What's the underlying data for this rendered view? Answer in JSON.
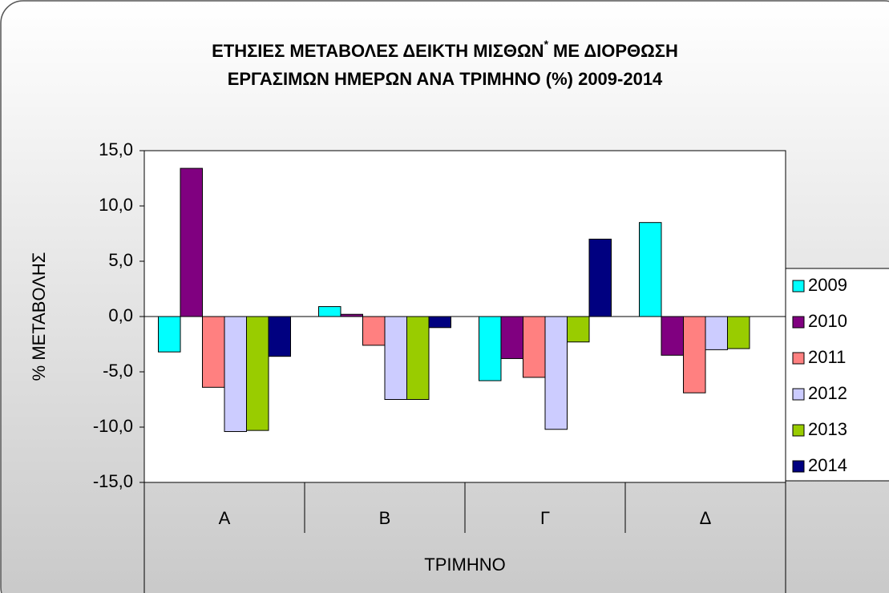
{
  "chart_data": {
    "type": "bar",
    "title": [
      "ΕΤΗΣΙΕΣ ΜΕΤΑΒΟΛΕΣ ΔΕΙΚΤΗ ΜΙΣΘΩΝ",
      "*",
      "ΜΕ ΔΙΟΡΘΩΣΗ",
      "ΕΡΓΑΣΙΜΩΝ ΗΜΕΡΩΝ ΑΝΑ ΤΡΙΜΗΝΟ (%) 2009-2014"
    ],
    "x_label": "ΤΡΙΜΗΝΟ",
    "y_label": "% ΜΕΤΑΒΟΛΗΣ",
    "categories": [
      "Α",
      "Β",
      "Γ",
      "Δ"
    ],
    "series": [
      {
        "name": "2009",
        "color": "#00ffff",
        "values": [
          -3.2,
          0.9,
          -5.8,
          8.5
        ]
      },
      {
        "name": "2010",
        "color": "#800080",
        "values": [
          13.4,
          0.2,
          -3.8,
          -3.5
        ]
      },
      {
        "name": "2011",
        "color": "#ff8080",
        "values": [
          -6.4,
          -2.6,
          -5.5,
          -6.9
        ]
      },
      {
        "name": "2012",
        "color": "#ccccff",
        "values": [
          -10.4,
          -7.5,
          -10.2,
          -3.0
        ]
      },
      {
        "name": "2013",
        "color": "#99cc00",
        "values": [
          -10.3,
          -7.5,
          -2.3,
          -2.9
        ]
      },
      {
        "name": "2014",
        "color": "#000080",
        "values": [
          -3.6,
          -1.0,
          7.0,
          null
        ]
      }
    ],
    "ylim": [
      -15,
      15
    ],
    "yticks": [
      {
        "value": 15,
        "label": "15,0"
      },
      {
        "value": 10,
        "label": "10,0"
      },
      {
        "value": 5,
        "label": "5,0"
      },
      {
        "value": 0,
        "label": "0,0"
      },
      {
        "value": -5,
        "label": "-5,0"
      },
      {
        "value": -10,
        "label": "-10,0"
      },
      {
        "value": -15,
        "label": "-15,0"
      }
    ],
    "grid": false,
    "legend": "right"
  }
}
